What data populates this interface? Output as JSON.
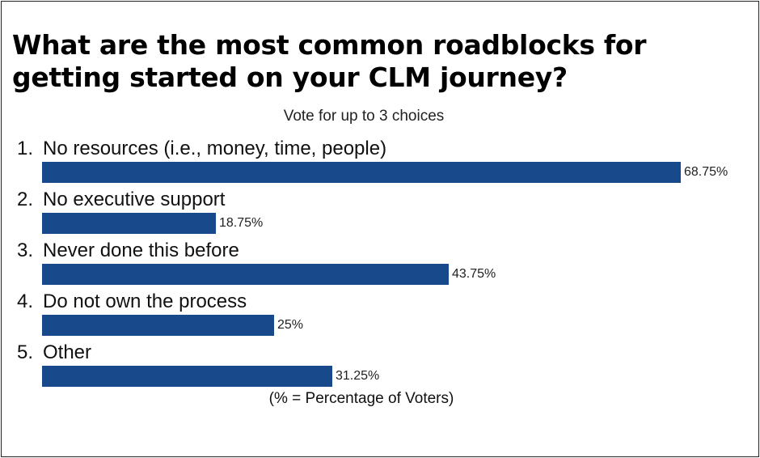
{
  "chart_data": {
    "type": "bar",
    "orientation": "horizontal",
    "title": "What are the most common roadblocks for getting started on your CLM journey?",
    "subtitle": "Vote for up to 3 choices",
    "footnote": "(% = Percentage of Voters)",
    "bar_color": "#17498b",
    "xlim": [
      0,
      68.75
    ],
    "categories": [
      {
        "num": "1.",
        "label": "No resources (i.e., money, time, people)",
        "value": 68.75,
        "value_label": "68.75%"
      },
      {
        "num": "2.",
        "label": "No executive support",
        "value": 18.75,
        "value_label": "18.75%"
      },
      {
        "num": "3.",
        "label": "Never done this before",
        "value": 43.75,
        "value_label": "43.75%"
      },
      {
        "num": "4.",
        "label": "Do not own the process",
        "value": 25,
        "value_label": "25%"
      },
      {
        "num": "5.",
        "label": "Other",
        "value": 31.25,
        "value_label": "31.25%"
      }
    ]
  }
}
